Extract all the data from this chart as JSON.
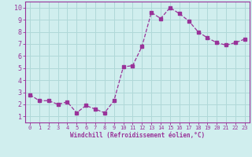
{
  "x": [
    0,
    1,
    2,
    3,
    4,
    5,
    6,
    7,
    8,
    9,
    10,
    11,
    12,
    13,
    14,
    15,
    16,
    17,
    18,
    19,
    20,
    21,
    22,
    23
  ],
  "y": [
    2.8,
    2.3,
    2.3,
    2.0,
    2.2,
    1.3,
    1.9,
    1.6,
    1.3,
    2.3,
    5.1,
    5.2,
    6.8,
    9.6,
    9.1,
    10.0,
    9.5,
    8.9,
    8.0,
    7.5,
    7.1,
    6.9,
    7.1,
    7.4
  ],
  "line_color": "#993399",
  "marker": "s",
  "marker_size": 2.5,
  "bg_color": "#d0eeee",
  "grid_color": "#b0d8d8",
  "xlabel": "Windchill (Refroidissement éolien,°C)",
  "ylabel_ticks": [
    1,
    2,
    3,
    4,
    5,
    6,
    7,
    8,
    9,
    10
  ],
  "xtick_labels": [
    "0",
    "1",
    "2",
    "3",
    "4",
    "5",
    "6",
    "7",
    "8",
    "9",
    "10",
    "11",
    "12",
    "13",
    "14",
    "15",
    "16",
    "17",
    "18",
    "19",
    "20",
    "21",
    "22",
    "23"
  ],
  "ylim": [
    0.5,
    10.5
  ],
  "xlim": [
    -0.5,
    23.5
  ],
  "tick_color": "#993399",
  "spine_color": "#993399"
}
